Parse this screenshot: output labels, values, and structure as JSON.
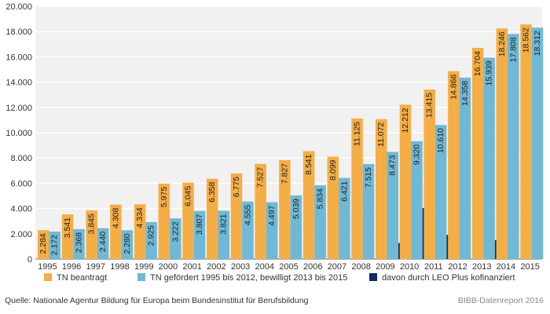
{
  "chart_data": {
    "type": "bar",
    "categories": [
      "1995",
      "1996",
      "1997",
      "1998",
      "1999",
      "2000",
      "2001",
      "2002",
      "2003",
      "2004",
      "2005",
      "2006",
      "2007",
      "2008",
      "2009",
      "2010",
      "2011",
      "2012",
      "2013",
      "2014",
      "2015"
    ],
    "series": [
      {
        "name": "TN beantragt",
        "color": "#f5ae45",
        "values": [
          2284,
          3541,
          3845,
          4308,
          4334,
          5975,
          6045,
          6358,
          6775,
          7527,
          7827,
          8541,
          8099,
          11125,
          11072,
          12212,
          13415,
          14866,
          16704,
          18246,
          18562
        ],
        "labels": [
          "2.284",
          "3.541",
          "3.845",
          "4.308",
          "4.334",
          "5.975",
          "6.045",
          "6.358",
          "6.775",
          "7.527",
          "7.827",
          "8.541",
          "8.099",
          "11.125",
          "11.072",
          "12.212",
          "13.415",
          "14.866",
          "16.704",
          "18.246",
          "18.562"
        ]
      },
      {
        "name": "TN gefördert 1995 bis 2012, bewilligt 2013 bis 2015",
        "color": "#6fb9d8",
        "values": [
          2172,
          2368,
          2440,
          2280,
          2925,
          3222,
          3807,
          3821,
          4555,
          4497,
          5039,
          5834,
          6421,
          7515,
          8473,
          9320,
          10610,
          14358,
          15939,
          17808,
          18312
        ],
        "labels": [
          "2.172",
          "2.368",
          "2.440",
          "2.280",
          "2.925",
          "3.222",
          "3.807",
          "3.821",
          "4.555",
          "4.497",
          "5.039",
          "5.834",
          "6.421",
          "7.515",
          "8.473",
          "9.320",
          "10.610",
          "14.358",
          "15.939",
          "17.808",
          "18.312"
        ]
      },
      {
        "name": "davon durch LEO Plus kofinanziert",
        "color": "#102b63",
        "values": [
          null,
          null,
          null,
          null,
          null,
          null,
          null,
          null,
          null,
          null,
          null,
          null,
          null,
          null,
          1269,
          4038,
          1918,
          null,
          1500,
          null,
          null
        ],
        "labels": [
          "",
          "",
          "",
          "",
          "",
          "",
          "",
          "",
          "",
          "",
          "",
          "",
          "",
          "",
          "1.269",
          "4.038",
          "1.918",
          "",
          "1.500",
          "",
          ""
        ]
      }
    ],
    "yticks": [
      0,
      2000,
      4000,
      6000,
      8000,
      10000,
      12000,
      14000,
      16000,
      18000,
      20000
    ],
    "ytick_labels": [
      "0",
      "2.000",
      "4.000",
      "6.000",
      "8.000",
      "10.000",
      "12.000",
      "14.000",
      "16.000",
      "18.000",
      "20.000"
    ],
    "ylim": [
      0,
      20000
    ],
    "grid": true,
    "legend_position": "bottom"
  },
  "footer": {
    "source": "Quelle: Nationale Agentur Bildung für Europa beim Bundesinstitut für Berufsbildung",
    "credit": "BIBB-Datenreport 2016"
  }
}
